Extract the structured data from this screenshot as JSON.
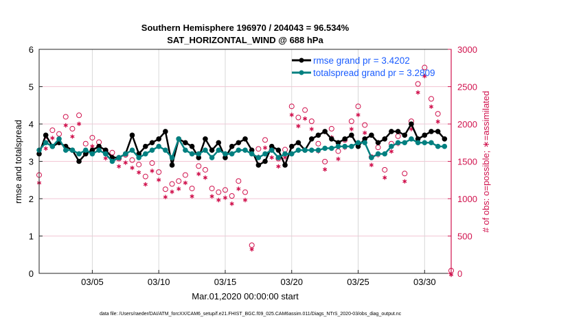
{
  "chart_data": {
    "type": "line",
    "title": "Southern Hemisphere 196970 / 204043 = 96.534%",
    "subtitle": "SAT_HORIZONTAL_WIND @ 688 hPa",
    "xlabel": "Mar.01,2020 00:00:00 start",
    "ylabel": "rmse and totalspread",
    "y2label": "# of obs: o=possible; ∗=assimilated",
    "ylim": [
      0,
      6
    ],
    "y2lim": [
      0,
      3000
    ],
    "xlim": [
      "2020-03-01T00:00",
      "2020-04-01T00:00"
    ],
    "yticks": [
      "0",
      "1",
      "2",
      "3",
      "4",
      "5",
      "6"
    ],
    "y2ticks": [
      "0",
      "500",
      "1000",
      "1500",
      "2000",
      "2500",
      "3000"
    ],
    "xticks": [
      {
        "label": "03/05",
        "date": "2020-03-05T00:00"
      },
      {
        "label": "03/10",
        "date": "2020-03-10T00:00"
      },
      {
        "label": "03/15",
        "date": "2020-03-15T00:00"
      },
      {
        "label": "03/20",
        "date": "2020-03-20T00:00"
      },
      {
        "label": "03/25",
        "date": "2020-03-25T00:00"
      },
      {
        "label": "03/30",
        "date": "2020-03-30T00:00"
      }
    ],
    "grid": true,
    "legend_position": "top-right",
    "x_start": "2020-03-01T00:00",
    "x_step_hours": 12,
    "series": [
      {
        "name": "rmse grand pr = 3.4202",
        "color": "#000000",
        "axis": "left",
        "values": [
          3.2,
          3.7,
          3.4,
          3.5,
          3.4,
          3.3,
          3.0,
          3.2,
          3.3,
          3.4,
          3.3,
          3.1,
          3.1,
          3.2,
          3.7,
          3.2,
          3.4,
          3.5,
          3.6,
          3.8,
          2.9,
          3.6,
          3.5,
          3.4,
          3.1,
          3.6,
          3.3,
          3.5,
          3.1,
          3.4,
          3.5,
          3.6,
          3.3,
          2.9,
          3.0,
          3.4,
          3.3,
          2.9,
          3.4,
          3.5,
          3.3,
          3.6,
          3.7,
          3.8,
          3.6,
          3.5,
          3.6,
          3.7,
          3.4,
          3.6,
          3.7,
          3.5,
          3.6,
          3.8,
          3.8,
          3.7,
          4.0,
          3.6,
          3.7,
          3.8,
          3.8,
          3.6
        ]
      },
      {
        "name": "totalspread grand pr = 3.2809",
        "color": "#008080",
        "axis": "left",
        "values": [
          3.3,
          3.5,
          3.4,
          3.6,
          3.3,
          3.3,
          3.2,
          3.3,
          3.2,
          3.3,
          3.2,
          3.0,
          3.1,
          3.2,
          3.3,
          3.1,
          3.2,
          3.3,
          3.4,
          3.3,
          3.1,
          3.6,
          3.3,
          3.2,
          3.2,
          3.3,
          3.1,
          3.3,
          3.2,
          3.2,
          3.3,
          3.3,
          3.2,
          3.1,
          3.2,
          3.3,
          3.1,
          3.2,
          3.2,
          3.3,
          3.3,
          3.3,
          3.3,
          3.35,
          3.35,
          3.4,
          3.4,
          3.4,
          3.5,
          3.5,
          3.1,
          3.2,
          3.2,
          3.4,
          3.5,
          3.5,
          3.6,
          3.5,
          3.5,
          3.5,
          3.4,
          3.4
        ]
      },
      {
        "name": "possible",
        "marker": "circle",
        "color": "#d0104c",
        "axis": "right",
        "values": [
          1280,
          1740,
          1880,
          1830,
          2060,
          1900,
          2080,
          1700,
          1780,
          1720,
          1610,
          1580,
          1500,
          1550,
          1480,
          1420,
          1260,
          1440,
          1320,
          1090,
          1160,
          1200,
          1280,
          1100,
          1400,
          1350,
          1100,
          1050,
          1080,
          1000,
          1200,
          1050,
          340,
          1630,
          1750,
          1620,
          1500,
          1620,
          2200,
          2050,
          2150,
          2000,
          1700,
          1460,
          1900,
          1600,
          1750,
          2000,
          2200,
          1950,
          1520,
          1650,
          1350,
          1700,
          1800,
          1300,
          2000,
          2500,
          2720,
          2300,
          2100,
          0
        ]
      },
      {
        "name": "assimilated",
        "marker": "asterisk",
        "color": "#d0104c",
        "axis": "right",
        "values": [
          1230,
          1690,
          1830,
          1780,
          2000,
          1850,
          2020,
          1650,
          1720,
          1670,
          1560,
          1530,
          1450,
          1500,
          1430,
          1370,
          1210,
          1390,
          1270,
          1040,
          1110,
          1150,
          1230,
          1050,
          1350,
          1300,
          1050,
          1000,
          1030,
          950,
          1150,
          1000,
          340,
          1580,
          1700,
          1570,
          1450,
          1570,
          2140,
          1990,
          2090,
          1950,
          1650,
          1410,
          1840,
          1550,
          1700,
          1950,
          2140,
          1900,
          1470,
          1600,
          1300,
          1650,
          1750,
          1250,
          1950,
          2440,
          2660,
          2250,
          2050,
          0
        ]
      }
    ]
  },
  "footer": "data file: /Users/raeder/DAI/ATM_forcXX/CAM6_setup/f.e21.FHIST_BGC.f09_025.CAM6assim.011/Diags_NTrS_2020-03/obs_diag_output.nc"
}
